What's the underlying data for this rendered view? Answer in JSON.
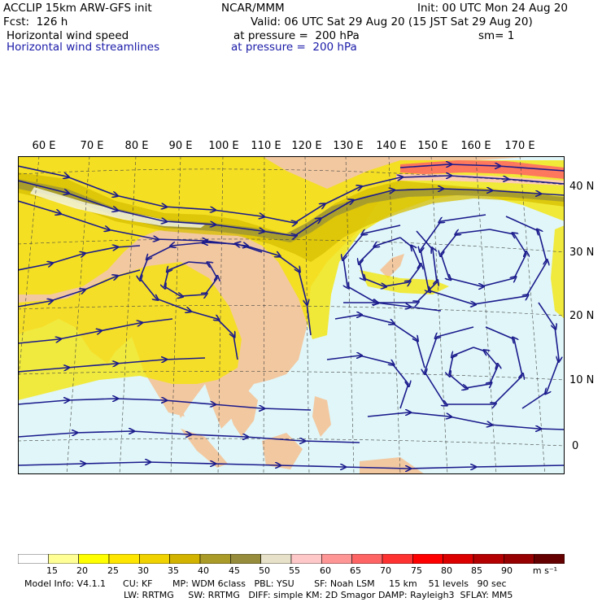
{
  "header": {
    "model": "ACCLIP 15km ARW-GFS init",
    "forecast": "Fcst:  126 h",
    "field1": "Horizontal wind speed",
    "field2": "Horizontal wind streamlines",
    "org": "NCAR/MMM",
    "init": "Init: 00 UTC Mon 24 Aug 20",
    "valid": "Valid: 06 UTC Sat 29 Aug 20 (15 JST Sat 29 Aug 20)",
    "pressure1": "at pressure =  200 hPa",
    "smooth": "sm= 1",
    "pressure2": "at pressure =  200 hPa"
  },
  "lon_labels": [
    "60 E",
    "70 E",
    "80 E",
    "90 E",
    "100 E",
    "110 E",
    "120 E",
    "130 E",
    "140 E",
    "150 E",
    "160 E",
    "170 E"
  ],
  "lat_labels": [
    "40 N",
    "30 N",
    "20 N",
    "10 N",
    "0"
  ],
  "colorbar": {
    "labels": [
      "15",
      "20",
      "25",
      "30",
      "35",
      "40",
      "45",
      "50",
      "55",
      "60",
      "65",
      "70",
      "75",
      "80",
      "85",
      "90"
    ],
    "unit": "m s⁻¹",
    "colors": [
      "#ffffff",
      "#ffff96",
      "#ffff00",
      "#ffe600",
      "#f0d200",
      "#d2b400",
      "#aa9a28",
      "#968c3c",
      "#e6e1c8",
      "#ffc8c8",
      "#ff9696",
      "#ff6464",
      "#ff3232",
      "#ff0000",
      "#dc0000",
      "#b40000",
      "#960000",
      "#640000"
    ]
  },
  "footer": {
    "line1": "Model Info: V4.1.1      CU: KF       MP: WDM 6class   PBL: YSU       SF: Noah LSM     15 km    51 levels   90 sec",
    "line2": "LW: RRTMG     SW: RRTMG   DIFF: simple KM: 2D Smagor DAMP: Rayleigh3  SFLAY: MM5"
  },
  "colors": {
    "ocean": "#e0f6f8",
    "land": "#f2c8a0",
    "streamline": "#1a1a8c",
    "jet_light": "#f5e600",
    "jet_mid": "#d7be00",
    "jet_core": "#a09632"
  }
}
